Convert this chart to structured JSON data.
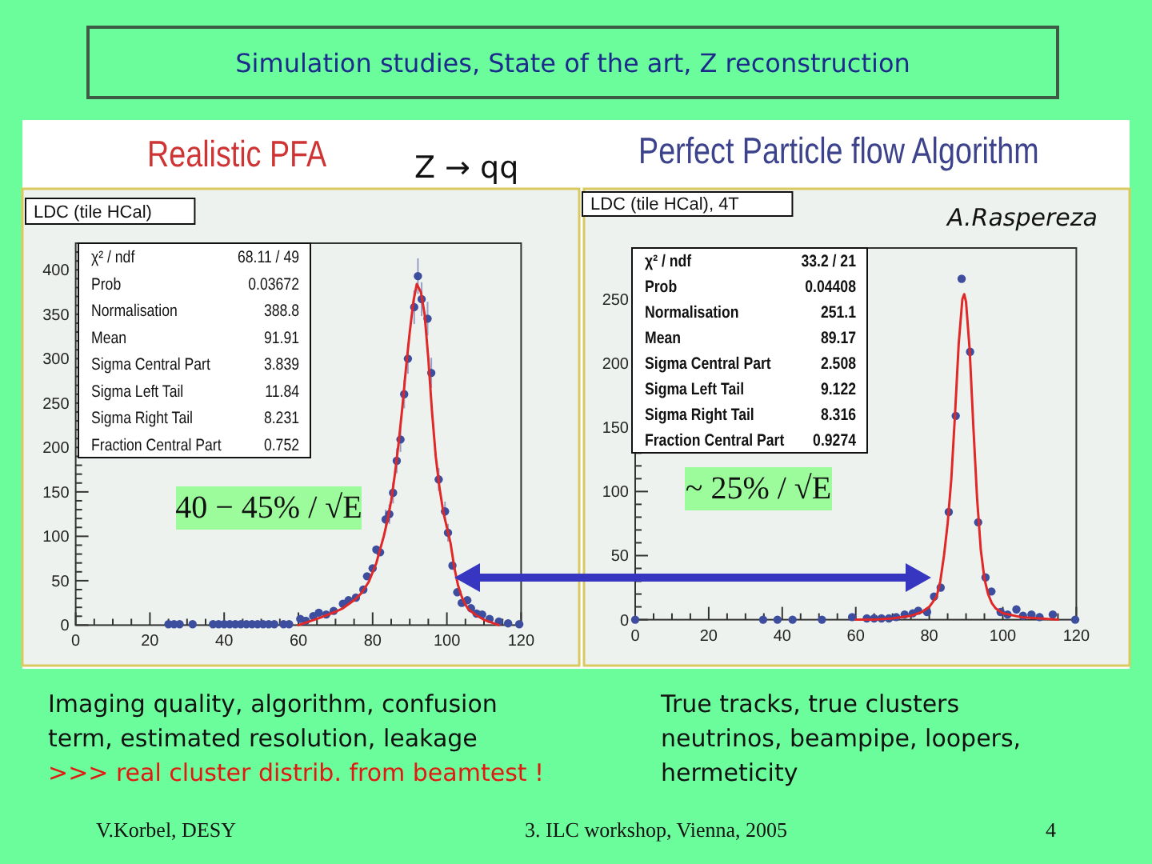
{
  "chart_data": [
    {
      "type": "other",
      "title": "Simulation studies, State of the art, Z reconstruction",
      "annotations": [
        "V.Korbel, DESY",
        "3. ILC workshop, Vienna, 2005",
        "4"
      ]
    },
    {
      "type": "scatter",
      "title": "Realistic PFA",
      "annotations": [
        "LDC (tile HCal)",
        "χ² / ndf",
        "68.11 / 49",
        "Prob",
        "0.03672",
        "Normalisation",
        "388.8",
        "Mean",
        "91.91",
        "Sigma Central Part",
        "3.839",
        "Sigma Left Tail",
        "11.84",
        "Sigma Right Tail",
        "8.231",
        "Fraction Central Part",
        "0.752",
        "40 − 45% / √E",
        "Imaging quality, algorithm, confusion",
        "term, estimated resolution, leakage",
        ">>> real cluster distrib. from beamtest !",
        "Z → qq"
      ],
      "xlim": [
        0,
        120
      ],
      "xticks": [
        0,
        {
          "value": 5,
          "label": null
        },
        {
          "value": 10,
          "label": null
        },
        {
          "value": 15,
          "label": null
        },
        20,
        {
          "value": 25,
          "label": null
        },
        {
          "value": 30,
          "label": null
        },
        {
          "value": 35,
          "label": null
        },
        40,
        {
          "value": 45,
          "label": null
        },
        {
          "value": 50,
          "label": null
        },
        {
          "value": 55,
          "label": null
        },
        60,
        {
          "value": 65,
          "label": null
        },
        {
          "value": 70,
          "label": null
        },
        {
          "value": 75,
          "label": null
        },
        80,
        {
          "value": 85,
          "label": null
        },
        {
          "value": 90,
          "label": null
        },
        {
          "value": 95,
          "label": null
        },
        100,
        {
          "value": 105,
          "label": null
        },
        {
          "value": 110,
          "label": null
        },
        {
          "value": 115,
          "label": null
        },
        120
      ],
      "ylim": [
        0,
        430
      ],
      "yticks": [
        0,
        {
          "value": 10,
          "label": null
        },
        {
          "value": 20,
          "label": null
        },
        {
          "value": 30,
          "label": null
        },
        {
          "value": 40,
          "label": null
        },
        50,
        {
          "value": 60,
          "label": null
        },
        {
          "value": 70,
          "label": null
        },
        {
          "value": 80,
          "label": null
        },
        {
          "value": 90,
          "label": null
        },
        100,
        {
          "value": 110,
          "label": null
        },
        {
          "value": 120,
          "label": null
        },
        {
          "value": 130,
          "label": null
        },
        {
          "value": 140,
          "label": null
        },
        150,
        {
          "value": 160,
          "label": null
        },
        {
          "value": 170,
          "label": null
        },
        {
          "value": 180,
          "label": null
        },
        {
          "value": 190,
          "label": null
        },
        200,
        {
          "value": 210,
          "label": null
        },
        {
          "value": 220,
          "label": null
        },
        {
          "value": 230,
          "label": null
        },
        {
          "value": 240,
          "label": null
        },
        250,
        {
          "value": 260,
          "label": null
        },
        {
          "value": 270,
          "label": null
        },
        {
          "value": 280,
          "label": null
        },
        {
          "value": 290,
          "label": null
        },
        300,
        {
          "value": 310,
          "label": null
        },
        {
          "value": 320,
          "label": null
        },
        {
          "value": 330,
          "label": null
        },
        {
          "value": 340,
          "label": null
        },
        350,
        {
          "value": 360,
          "label": null
        },
        {
          "value": 370,
          "label": null
        },
        {
          "value": 380,
          "label": null
        },
        {
          "value": 390,
          "label": null
        },
        400,
        {
          "value": 410,
          "label": null
        },
        {
          "value": 420,
          "label": null
        },
        {
          "value": 430,
          "label": null
        }
      ],
      "marker": "circle",
      "series": [
        {
          "type": "scatter",
          "color": "#3d4e9e",
          "x": [
            25,
            26.5,
            28,
            31.5,
            37,
            38.5,
            40,
            41.5,
            43,
            44.5,
            46,
            47.5,
            49,
            50.5,
            52,
            53.5,
            56,
            57.5,
            60.5,
            62,
            64,
            65.5,
            67.5,
            69.5,
            72,
            73.5,
            75.5,
            77.5,
            78.5,
            80,
            81,
            82,
            83.5,
            84.5,
            85.5,
            86.5,
            87.5,
            88.5,
            89.5,
            91.2,
            92.2,
            93.2,
            94.8,
            95.8,
            97.8,
            99.5,
            100.3,
            101.5,
            102.8,
            104,
            105.5,
            106.5,
            108,
            109.5,
            111.5,
            114,
            116.5,
            119.5
          ],
          "values": [
            1,
            1,
            1,
            1,
            1,
            1,
            1,
            1,
            1,
            1,
            1,
            1,
            1,
            1,
            1,
            1,
            1,
            1,
            7,
            5,
            10,
            14,
            12,
            16,
            24,
            28,
            31,
            40,
            55,
            64,
            85,
            82,
            119,
            125,
            149,
            185,
            209,
            260,
            300,
            358,
            393,
            367,
            345,
            284,
            164,
            128,
            104,
            67,
            37,
            25,
            28,
            19,
            13,
            12,
            7,
            4,
            2,
            1
          ],
          "errors": [
            null,
            null,
            null,
            null,
            null,
            null,
            null,
            null,
            null,
            null,
            null,
            null,
            null,
            null,
            null,
            null,
            null,
            null,
            null,
            null,
            null,
            null,
            null,
            null,
            null,
            null,
            null,
            null,
            null,
            null,
            null,
            null,
            11,
            11,
            12,
            14,
            14,
            16,
            17,
            19,
            20,
            19,
            19,
            17,
            13,
            11,
            10,
            null,
            null,
            null,
            null,
            null,
            null,
            null,
            null,
            null,
            null,
            null
          ]
        },
        {
          "type": "line",
          "color": "#e02828",
          "marker": "none",
          "x": [
            60,
            65,
            70,
            72,
            75,
            77,
            79,
            81,
            83,
            84,
            85,
            86,
            87,
            88,
            89,
            90,
            91,
            91.9,
            93,
            94,
            95,
            96,
            97,
            98,
            99,
            100,
            101,
            102,
            103,
            104,
            105,
            106,
            108,
            110,
            112,
            114
          ],
          "values": [
            0,
            7,
            15,
            19,
            28,
            36,
            49,
            70,
            100,
            118,
            140,
            170,
            205,
            245,
            290,
            330,
            365,
            384,
            375,
            350,
            300,
            240,
            190,
            155,
            128,
            110,
            92,
            65,
            45,
            32,
            23,
            17,
            11,
            6,
            3,
            0
          ]
        }
      ]
    },
    {
      "type": "scatter",
      "title": "Perfect Particle flow Algorithm",
      "annotations": [
        "LDC (tile HCal), 4T",
        "χ² / ndf",
        "33.2 / 21",
        "Prob",
        "0.04408",
        "Normalisation",
        "251.1",
        "Mean",
        "89.17",
        "Sigma Central Part",
        "2.508",
        "Sigma Left Tail",
        "9.122",
        "Sigma Right Tail",
        "8.316",
        "Fraction Central Part",
        "0.9274",
        "~ 25% / √E",
        "True tracks, true clusters",
        "neutrinos, beampipe, loopers,",
        "hermeticity",
        "A.Raspereza"
      ],
      "xlim": [
        0,
        120
      ],
      "xticks": [
        0,
        {
          "value": 5,
          "label": null
        },
        {
          "value": 10,
          "label": null
        },
        {
          "value": 15,
          "label": null
        },
        20,
        {
          "value": 25,
          "label": null
        },
        {
          "value": 30,
          "label": null
        },
        {
          "value": 35,
          "label": null
        },
        40,
        {
          "value": 45,
          "label": null
        },
        {
          "value": 50,
          "label": null
        },
        {
          "value": 55,
          "label": null
        },
        60,
        {
          "value": 65,
          "label": null
        },
        {
          "value": 70,
          "label": null
        },
        {
          "value": 75,
          "label": null
        },
        80,
        {
          "value": 85,
          "label": null
        },
        {
          "value": 90,
          "label": null
        },
        {
          "value": 95,
          "label": null
        },
        100,
        {
          "value": 105,
          "label": null
        },
        {
          "value": 110,
          "label": null
        },
        {
          "value": 115,
          "label": null
        },
        120
      ],
      "ylim": [
        0,
        290
      ],
      "yticks": [
        0,
        {
          "value": 10,
          "label": null
        },
        {
          "value": 20,
          "label": null
        },
        {
          "value": 30,
          "label": null
        },
        {
          "value": 40,
          "label": null
        },
        50,
        {
          "value": 60,
          "label": null
        },
        {
          "value": 70,
          "label": null
        },
        {
          "value": 80,
          "label": null
        },
        {
          "value": 90,
          "label": null
        },
        100,
        {
          "value": 110,
          "label": null
        },
        {
          "value": 120,
          "label": null
        },
        {
          "value": 130,
          "label": null
        },
        {
          "value": 140,
          "label": null
        },
        150,
        {
          "value": 160,
          "label": null
        },
        {
          "value": 170,
          "label": null
        },
        {
          "value": 180,
          "label": null
        },
        {
          "value": 190,
          "label": null
        },
        200,
        {
          "value": 210,
          "label": null
        },
        {
          "value": 220,
          "label": null
        },
        {
          "value": 230,
          "label": null
        },
        {
          "value": 240,
          "label": null
        },
        250,
        {
          "value": 260,
          "label": null
        },
        {
          "value": 270,
          "label": null
        },
        {
          "value": 280,
          "label": null
        }
      ],
      "marker": "circle",
      "series": [
        {
          "type": "scatter",
          "color": "#3d4e9e",
          "x": [
            0,
            34.8,
            38.7,
            42.8,
            50.8,
            59,
            63,
            65,
            67,
            69,
            71,
            73.3,
            75.5,
            77,
            79.4,
            81.3,
            83.1,
            85.3,
            87.2,
            88.8,
            91.1,
            93.3,
            95.3,
            96.9,
            99.4,
            101.3,
            103.7,
            105.5,
            107.8,
            110,
            113.6,
            119.7
          ],
          "values": [
            0,
            0,
            0,
            0,
            0,
            2,
            1,
            1,
            1,
            1,
            2,
            4,
            5,
            7,
            6,
            18,
            25,
            84,
            159,
            266,
            209,
            76,
            33,
            22,
            6,
            4,
            8,
            3,
            4,
            2,
            4,
            0
          ]
        },
        {
          "type": "line",
          "color": "#e02828",
          "marker": "none",
          "x": [
            60,
            65,
            70,
            75,
            78,
            80,
            82,
            83,
            84,
            85,
            86,
            87,
            88,
            89,
            89.5,
            90,
            91,
            92,
            93,
            94,
            95,
            96,
            97,
            98,
            100,
            105,
            110,
            115
          ],
          "values": [
            0,
            0,
            1,
            3,
            6,
            10,
            18,
            30,
            50,
            75,
            110,
            160,
            215,
            250,
            254,
            248,
            210,
            150,
            95,
            55,
            32,
            20,
            13,
            9,
            5,
            2,
            1,
            0
          ]
        }
      ]
    }
  ]
}
